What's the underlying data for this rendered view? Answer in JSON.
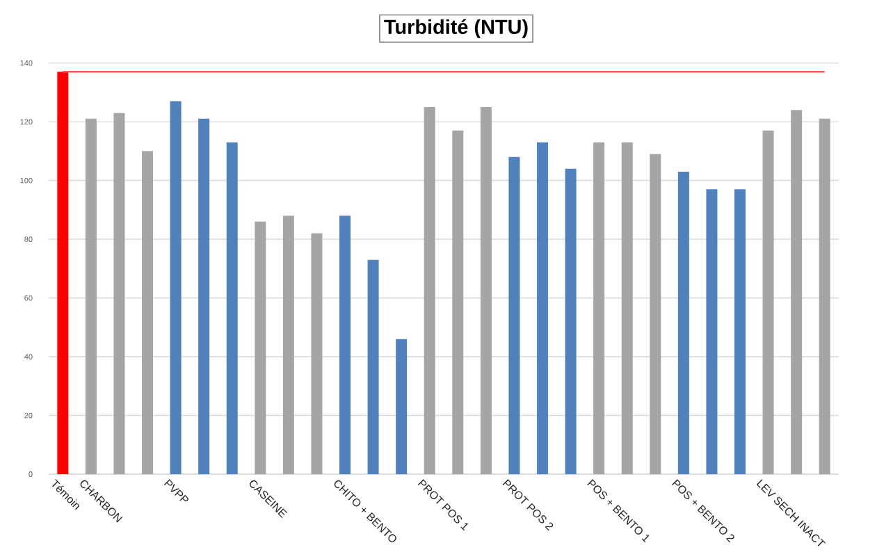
{
  "chart_data": {
    "type": "bar",
    "title": "Turbidité (NTU)",
    "categories": [
      "Témoin",
      "CHARBON",
      null,
      null,
      "PVPP",
      null,
      null,
      "CASEINE",
      null,
      null,
      "CHITO + BENTO",
      null,
      null,
      "PROT POS 1",
      null,
      null,
      "PROT POS 2",
      null,
      null,
      "POS + BENTO 1",
      null,
      null,
      "POS + BENTO 2",
      null,
      null,
      "LEV SECH INACT",
      null,
      null
    ],
    "values": [
      137,
      121,
      123,
      110,
      127,
      121,
      113,
      86,
      88,
      82,
      88,
      73,
      46,
      125,
      117,
      125,
      108,
      113,
      104,
      113,
      113,
      109,
      103,
      97,
      97,
      117,
      124,
      121
    ],
    "colors": [
      "#ff0000",
      "#a5a5a5",
      "#a5a5a5",
      "#a5a5a5",
      "#4f81bd",
      "#4f81bd",
      "#4f81bd",
      "#a5a5a5",
      "#a5a5a5",
      "#a5a5a5",
      "#4f81bd",
      "#4f81bd",
      "#4f81bd",
      "#a5a5a5",
      "#a5a5a5",
      "#a5a5a5",
      "#4f81bd",
      "#4f81bd",
      "#4f81bd",
      "#a5a5a5",
      "#a5a5a5",
      "#a5a5a5",
      "#4f81bd",
      "#4f81bd",
      "#4f81bd",
      "#a5a5a5",
      "#a5a5a5",
      "#a5a5a5"
    ],
    "ylim": [
      0,
      140
    ],
    "yticks": [
      0,
      20,
      40,
      60,
      80,
      100,
      120,
      140
    ],
    "grid": "y",
    "ref_lines": [
      {
        "axis": "y",
        "value": 137,
        "color": "#ff5a5a"
      }
    ]
  }
}
